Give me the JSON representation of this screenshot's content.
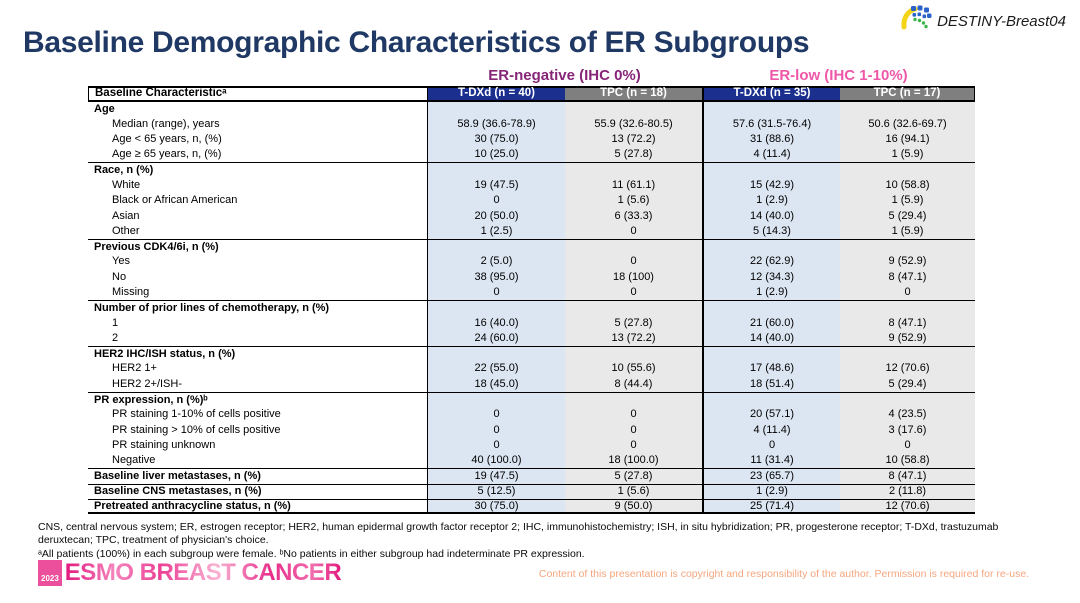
{
  "meta": {
    "trial": "DESTINY-Breast04"
  },
  "title": "Baseline Demographic Characteristics of ER Subgroups",
  "colors": {
    "title_navy": "#1f3864",
    "er_negative": "#872577",
    "er_low": "#ee58a8",
    "tdxd_header_bg": "#1a2f8e",
    "tpc_header_bg": "#7f7f7f",
    "tdxd_col_bg": "#dce6f2",
    "tpc_col_bg": "#e9e9e9",
    "esmo_pink": "#ec4f9c",
    "copyright_salmon": "#f4a67e"
  },
  "table": {
    "groups": [
      {
        "label": "ER-negative (IHC 0%)"
      },
      {
        "label": "ER-low (IHC 1-10%)"
      }
    ],
    "header": {
      "label_col": "Baseline Characteristicᵃ",
      "cols": [
        "T-DXd (n = 40)",
        "TPC (n = 18)",
        "T-DXd (n = 35)",
        "TPC (n = 17)"
      ]
    },
    "rows": [
      {
        "type": "section",
        "label": "Age",
        "values": [
          "",
          "",
          "",
          ""
        ]
      },
      {
        "type": "sub",
        "label": "Median (range), years",
        "values": [
          "58.9 (36.6-78.9)",
          "55.9 (32.6-80.5)",
          "57.6 (31.5-76.4)",
          "50.6 (32.6-69.7)"
        ]
      },
      {
        "type": "sub",
        "label": "Age < 65 years, n, (%)",
        "values": [
          "30 (75.0)",
          "13 (72.2)",
          "31 (88.6)",
          "16 (94.1)"
        ]
      },
      {
        "type": "sub",
        "label": "Age ≥ 65 years, n, (%)",
        "values": [
          "10 (25.0)",
          "5 (27.8)",
          "4 (11.4)",
          "1 (5.9)"
        ]
      },
      {
        "type": "section",
        "label": "Race, n (%)",
        "values": [
          "",
          "",
          "",
          ""
        ]
      },
      {
        "type": "sub",
        "label": "White",
        "values": [
          "19 (47.5)",
          "11 (61.1)",
          "15 (42.9)",
          "10 (58.8)"
        ]
      },
      {
        "type": "sub",
        "label": "Black or African American",
        "values": [
          "0",
          "1 (5.6)",
          "1 (2.9)",
          "1 (5.9)"
        ]
      },
      {
        "type": "sub",
        "label": "Asian",
        "values": [
          "20 (50.0)",
          "6 (33.3)",
          "14 (40.0)",
          "5 (29.4)"
        ]
      },
      {
        "type": "sub",
        "label": "Other",
        "values": [
          "1 (2.5)",
          "0",
          "5 (14.3)",
          "1 (5.9)"
        ]
      },
      {
        "type": "section",
        "label": "Previous CDK4/6i, n (%)",
        "values": [
          "",
          "",
          "",
          ""
        ]
      },
      {
        "type": "sub",
        "label": "Yes",
        "values": [
          "2 (5.0)",
          "0",
          "22 (62.9)",
          "9 (52.9)"
        ]
      },
      {
        "type": "sub",
        "label": "No",
        "values": [
          "38 (95.0)",
          "18 (100)",
          "12 (34.3)",
          "8 (47.1)"
        ]
      },
      {
        "type": "sub",
        "label": "Missing",
        "values": [
          "0",
          "0",
          "1 (2.9)",
          "0"
        ]
      },
      {
        "type": "section",
        "label": "Number of prior lines of chemotherapy, n (%)",
        "values": [
          "",
          "",
          "",
          ""
        ]
      },
      {
        "type": "sub",
        "label": "1",
        "values": [
          "16 (40.0)",
          "5 (27.8)",
          "21 (60.0)",
          "8 (47.1)"
        ]
      },
      {
        "type": "sub",
        "label": "2",
        "values": [
          "24 (60.0)",
          "13 (72.2)",
          "14 (40.0)",
          "9 (52.9)"
        ]
      },
      {
        "type": "section",
        "label": "HER2 IHC/ISH status, n (%)",
        "values": [
          "",
          "",
          "",
          ""
        ]
      },
      {
        "type": "sub",
        "label": "HER2 1+",
        "values": [
          "22 (55.0)",
          "10 (55.6)",
          "17 (48.6)",
          "12 (70.6)"
        ]
      },
      {
        "type": "sub",
        "label": "HER2 2+/ISH-",
        "values": [
          "18 (45.0)",
          "8 (44.4)",
          "18 (51.4)",
          "5 (29.4)"
        ]
      },
      {
        "type": "section",
        "label": "PR expression, n (%)ᵇ",
        "values": [
          "",
          "",
          "",
          ""
        ]
      },
      {
        "type": "sub",
        "label": "PR staining 1-10% of cells positive",
        "values": [
          "0",
          "0",
          "20 (57.1)",
          "4 (23.5)"
        ]
      },
      {
        "type": "sub",
        "label": "PR staining > 10% of cells positive",
        "values": [
          "0",
          "0",
          "4 (11.4)",
          "3 (17.6)"
        ]
      },
      {
        "type": "sub",
        "label": "PR staining unknown",
        "values": [
          "0",
          "0",
          "0",
          "0"
        ]
      },
      {
        "type": "sub",
        "label": "Negative",
        "values": [
          "40 (100.0)",
          "18 (100.0)",
          "11 (31.4)",
          "10 (58.8)"
        ]
      },
      {
        "type": "bold",
        "label": "Baseline liver metastases, n (%)",
        "values": [
          "19 (47.5)",
          "5 (27.8)",
          "23 (65.7)",
          "8 (47.1)"
        ]
      },
      {
        "type": "bold",
        "label": "Baseline CNS metastases, n (%)",
        "values": [
          "5 (12.5)",
          "1 (5.6)",
          "1 (2.9)",
          "2 (11.8)"
        ]
      },
      {
        "type": "bold",
        "label": "Pretreated anthracycline status, n (%)",
        "values": [
          "30 (75.0)",
          "9 (50.0)",
          "25 (71.4)",
          "12 (70.6)"
        ]
      }
    ]
  },
  "footnotes": {
    "abbreviations": "CNS, central nervous system; ER, estrogen receptor; HER2, human epidermal growth factor receptor 2; IHC, immunohistochemistry; ISH, in situ hybridization; PR, progesterone receptor; T-DXd, trastuzumab deruxtecan; TPC, treatment of physician's choice.",
    "notes": "ᵃAll patients (100%) in each subgroup were female. ᵇNo patients in either subgroup had indeterminate PR expression."
  },
  "footer": {
    "esmo_year": "2023",
    "esmo_name": "ESMO BREAST CANCER",
    "copyright": "Content of this presentation is copyright and responsibility of the author. Permission is required for re-use."
  }
}
